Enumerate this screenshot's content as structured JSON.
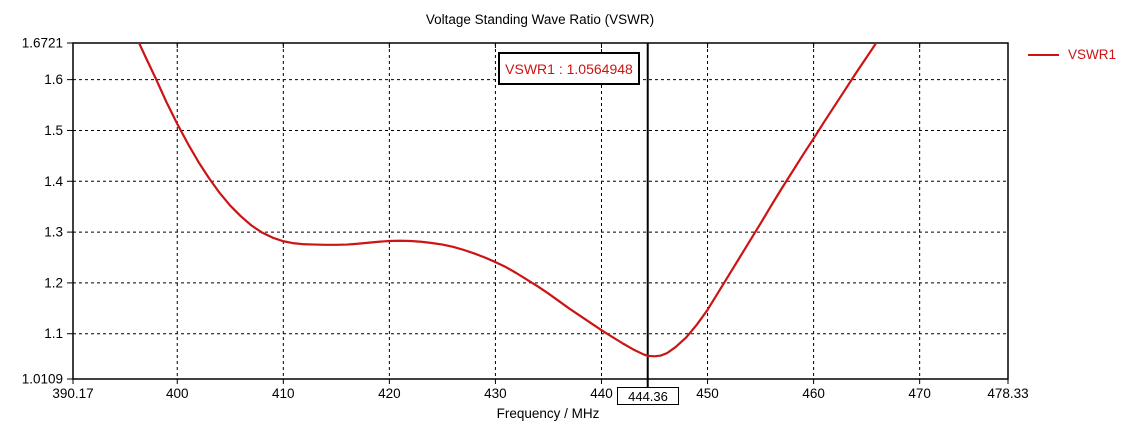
{
  "chart_data": {
    "type": "line",
    "title": "Voltage Standing Wave Ratio (VSWR)",
    "xlabel": "Frequency / MHz",
    "ylabel": "",
    "xlim": [
      390.17,
      478.33
    ],
    "ylim": [
      1.0109,
      1.6721
    ],
    "grid": "dashed",
    "legend_position": "top-right",
    "x_ticks": [
      {
        "v": 390.17,
        "label": "390.17"
      },
      {
        "v": 400,
        "label": "400"
      },
      {
        "v": 410,
        "label": "410"
      },
      {
        "v": 420,
        "label": "420"
      },
      {
        "v": 430,
        "label": "430"
      },
      {
        "v": 440,
        "label": "440"
      },
      {
        "v": 450,
        "label": "450"
      },
      {
        "v": 460,
        "label": "460"
      },
      {
        "v": 470,
        "label": "470"
      },
      {
        "v": 478.33,
        "label": "478.33"
      }
    ],
    "y_ticks": [
      {
        "v": 1.0109,
        "label": "1.0109"
      },
      {
        "v": 1.1,
        "label": "1.1"
      },
      {
        "v": 1.2,
        "label": "1.2"
      },
      {
        "v": 1.3,
        "label": "1.3"
      },
      {
        "v": 1.4,
        "label": "1.4"
      },
      {
        "v": 1.5,
        "label": "1.5"
      },
      {
        "v": 1.6,
        "label": "1.6"
      },
      {
        "v": 1.6721,
        "label": "1.6721"
      }
    ],
    "x_grid": [
      400,
      410,
      420,
      430,
      440,
      450,
      460,
      470
    ],
    "y_grid": [
      1.1,
      1.2,
      1.3,
      1.4,
      1.5,
      1.6
    ],
    "marker": {
      "x": 444.36,
      "x_label": "444.36",
      "value": 1.0564948,
      "label": "VSWR1 : 1.0564948"
    },
    "series": [
      {
        "name": "VSWR1",
        "color": "#cc1414",
        "points": [
          [
            396.4,
            1.672
          ],
          [
            397,
            1.645
          ],
          [
            398,
            1.601
          ],
          [
            399,
            1.555
          ],
          [
            400,
            1.513
          ],
          [
            401,
            1.474
          ],
          [
            402,
            1.438
          ],
          [
            403,
            1.406
          ],
          [
            404,
            1.377
          ],
          [
            405,
            1.352
          ],
          [
            406,
            1.331
          ],
          [
            407,
            1.313
          ],
          [
            408,
            1.299
          ],
          [
            409,
            1.289
          ],
          [
            410,
            1.282
          ],
          [
            411,
            1.278
          ],
          [
            412,
            1.276
          ],
          [
            413,
            1.2755
          ],
          [
            414,
            1.275
          ],
          [
            415,
            1.275
          ],
          [
            416,
            1.2755
          ],
          [
            417,
            1.277
          ],
          [
            418,
            1.279
          ],
          [
            419,
            1.281
          ],
          [
            420,
            1.2825
          ],
          [
            421,
            1.283
          ],
          [
            422,
            1.2825
          ],
          [
            423,
            1.281
          ],
          [
            424,
            1.2785
          ],
          [
            425,
            1.2755
          ],
          [
            426,
            1.271
          ],
          [
            427,
            1.265
          ],
          [
            428,
            1.258
          ],
          [
            429,
            1.25
          ],
          [
            430,
            1.241
          ],
          [
            431,
            1.231
          ],
          [
            432,
            1.219
          ],
          [
            433,
            1.206
          ],
          [
            434,
            1.193
          ],
          [
            435,
            1.179
          ],
          [
            436,
            1.164
          ],
          [
            437,
            1.149
          ],
          [
            438,
            1.135
          ],
          [
            439,
            1.121
          ],
          [
            440,
            1.107
          ],
          [
            441,
            1.094
          ],
          [
            442,
            1.081
          ],
          [
            443,
            1.069
          ],
          [
            444,
            1.059
          ],
          [
            444.36,
            1.0565
          ],
          [
            445,
            1.0555
          ],
          [
            445.6,
            1.057
          ],
          [
            446.2,
            1.062
          ],
          [
            447,
            1.074
          ],
          [
            448,
            1.093
          ],
          [
            449,
            1.118
          ],
          [
            450,
            1.147
          ],
          [
            451,
            1.181
          ],
          [
            452,
            1.215
          ],
          [
            453,
            1.249
          ],
          [
            454,
            1.283
          ],
          [
            455,
            1.317
          ],
          [
            456,
            1.352
          ],
          [
            457,
            1.386
          ],
          [
            458,
            1.419
          ],
          [
            459,
            1.452
          ],
          [
            460,
            1.484
          ],
          [
            461,
            1.517
          ],
          [
            462,
            1.549
          ],
          [
            463,
            1.581
          ],
          [
            464,
            1.613
          ],
          [
            465,
            1.644
          ],
          [
            465.9,
            1.672
          ]
        ]
      }
    ],
    "colors": {
      "curve": "#cc1414",
      "marker_line": "#000000",
      "grid": "#000000",
      "axis": "#000000",
      "background": "#ffffff"
    }
  }
}
